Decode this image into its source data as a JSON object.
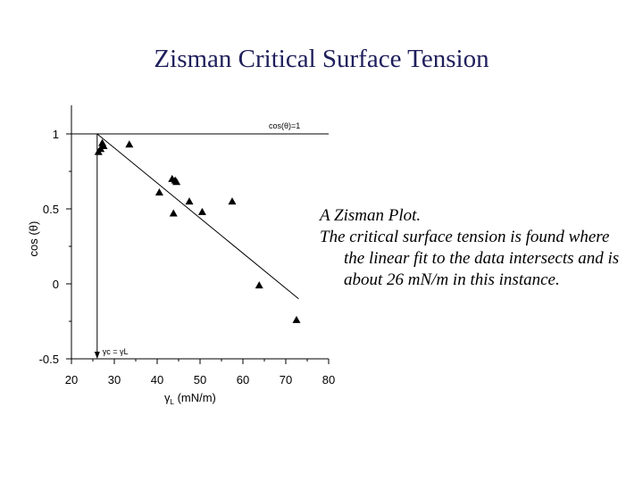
{
  "slide": {
    "title": "Zisman Critical Surface Tension",
    "caption": {
      "line1": "A Zisman Plot.",
      "line2": "The critical surface tension is found where the linear fit to the data intersects  and is about 26 mN/m in this instance."
    }
  },
  "chart_data": {
    "type": "scatter",
    "title": "",
    "xlabel_main": "γ",
    "xlabel_sub": "L",
    "xlabel_unit": " (mN/m)",
    "ylabel": "cos (θ)",
    "xlim": [
      20,
      80
    ],
    "ylim": [
      -0.5,
      1.0
    ],
    "x_ticks": [
      20,
      30,
      40,
      50,
      60,
      70,
      80
    ],
    "x_tick_labels": [
      "20",
      "30",
      "40",
      "50",
      "60",
      "70",
      "80"
    ],
    "y_ticks": [
      -0.5,
      0,
      0.5,
      1
    ],
    "y_tick_labels": [
      "-0.5",
      "0",
      "0.5",
      "1"
    ],
    "reference_line": {
      "y": 1,
      "label": "cos(θ)=1"
    },
    "critical_marker": {
      "x": 26,
      "label": "γc = γL"
    },
    "fit_line": {
      "x": [
        26,
        73
      ],
      "y": [
        1.0,
        -0.1
      ]
    },
    "series": [
      {
        "marker": "triangle",
        "points": [
          {
            "x": 26.3,
            "y": 0.88
          },
          {
            "x": 26.8,
            "y": 0.9
          },
          {
            "x": 27.5,
            "y": 0.92
          },
          {
            "x": 27.2,
            "y": 0.94
          },
          {
            "x": 33.5,
            "y": 0.93
          },
          {
            "x": 40.5,
            "y": 0.61
          },
          {
            "x": 43.5,
            "y": 0.7
          },
          {
            "x": 44.2,
            "y": 0.69
          },
          {
            "x": 44.5,
            "y": 0.68
          },
          {
            "x": 47.5,
            "y": 0.55
          },
          {
            "x": 43.8,
            "y": 0.47
          },
          {
            "x": 50.5,
            "y": 0.48
          },
          {
            "x": 57.5,
            "y": 0.55
          },
          {
            "x": 63.8,
            "y": -0.01
          },
          {
            "x": 72.5,
            "y": -0.24
          }
        ]
      }
    ]
  }
}
